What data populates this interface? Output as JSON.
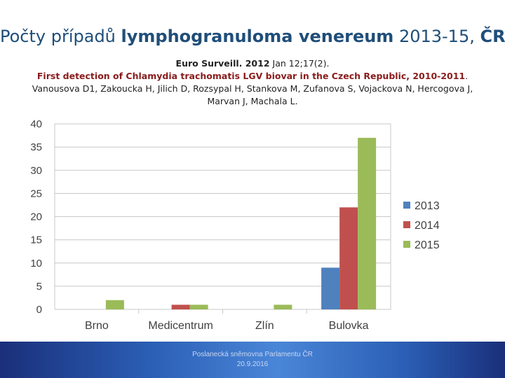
{
  "title": {
    "part1": "Počty případů ",
    "part2": "lymphogranuloma venereum",
    "part3": " 2013-15, ",
    "part4": "ČR"
  },
  "reference": {
    "journal_bold": "Euro Surveill. 2012",
    "journal_rest": " Jan 12;17(2).",
    "article": "First detection of Chlamydia trachomatis LGV biovar in the Czech Republic, 2010-2011",
    "authors": ". Vanousova D1, Zakoucka H, Jilich D, Rozsypal H, Stankova M, Zufanova S, Vojackova N, Hercogova J, Marvan J, Machala L."
  },
  "chart_data": {
    "type": "bar",
    "categories": [
      "Brno",
      "Medicentrum",
      "Zlín",
      "Bulovka"
    ],
    "series": [
      {
        "name": "2013",
        "color": "#4f81bd",
        "values": [
          0,
          0,
          0,
          9
        ]
      },
      {
        "name": "2014",
        "color": "#c0504d",
        "values": [
          0,
          1,
          0,
          22
        ]
      },
      {
        "name": "2015",
        "color": "#9bbb59",
        "values": [
          2,
          1,
          1,
          37
        ]
      }
    ],
    "ylim": [
      0,
      40
    ],
    "yticks": [
      0,
      5,
      10,
      15,
      20,
      25,
      30,
      35,
      40
    ],
    "grid": true,
    "legend": "right"
  },
  "footer": {
    "line1": "Poslanecká sněmovna Parlamentu ČR",
    "line2": "20.9.2016"
  }
}
